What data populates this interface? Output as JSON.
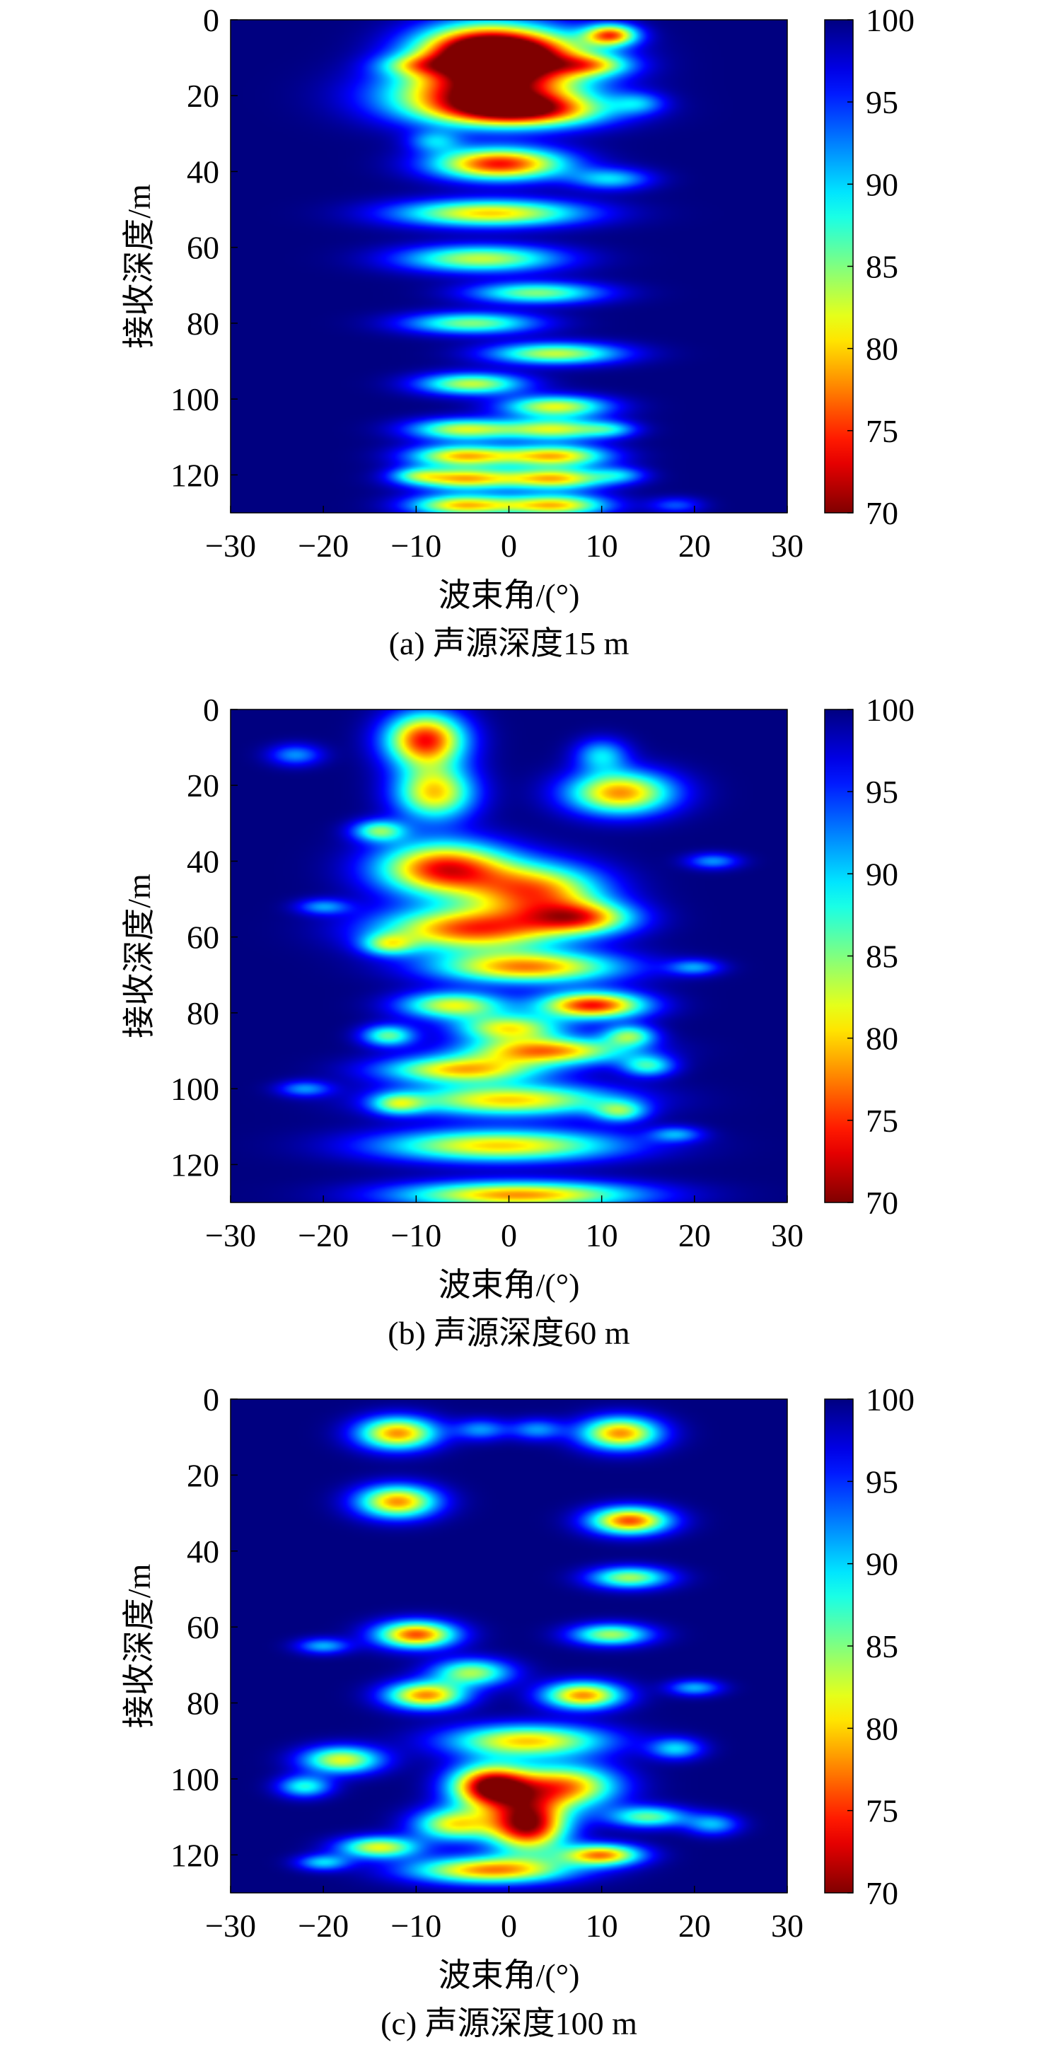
{
  "panels": [
    {
      "caption": "(a) 声源深度15 m",
      "chart_data": {
        "type": "heatmap",
        "title": "",
        "xlabel": "波束角/(°)",
        "ylabel": "接收深度/m",
        "xlim": [
          -30,
          30
        ],
        "ylim": [
          0,
          130
        ],
        "y_inverted": true,
        "xticks": [
          "−30",
          "−20",
          "−10",
          "0",
          "10",
          "20",
          "30"
        ],
        "yticks": [
          "0",
          "20",
          "40",
          "60",
          "80",
          "100",
          "120"
        ],
        "colorbar": {
          "min": 70,
          "max": 100,
          "ticks": [
            "70",
            "75",
            "80",
            "85",
            "90",
            "95",
            "100"
          ],
          "colormap": "jet-reversed"
        },
        "hotspots": [
          {
            "x": -3,
            "y": 8,
            "sx": 5,
            "sy": 5,
            "depth": 24
          },
          {
            "x": 1,
            "y": 10,
            "sx": 6,
            "sy": 5,
            "depth": 24
          },
          {
            "x": -3,
            "y": 20,
            "sx": 7,
            "sy": 5,
            "depth": 27
          },
          {
            "x": 2,
            "y": 24,
            "sx": 6,
            "sy": 3,
            "depth": 20
          },
          {
            "x": -1,
            "y": 38,
            "sx": 5,
            "sy": 3,
            "depth": 26
          },
          {
            "x": -2,
            "y": 51,
            "sx": 7,
            "sy": 2.5,
            "depth": 20
          },
          {
            "x": -3,
            "y": 63,
            "sx": 6,
            "sy": 2.5,
            "depth": 17
          },
          {
            "x": 3,
            "y": 72,
            "sx": 5,
            "sy": 2,
            "depth": 15
          },
          {
            "x": -4,
            "y": 80,
            "sx": 5,
            "sy": 2,
            "depth": 15
          },
          {
            "x": 5,
            "y": 88,
            "sx": 5,
            "sy": 2,
            "depth": 17
          },
          {
            "x": -4,
            "y": 96,
            "sx": 4,
            "sy": 2,
            "depth": 17
          },
          {
            "x": 5,
            "y": 102,
            "sx": 4,
            "sy": 2,
            "depth": 18
          },
          {
            "x": -5,
            "y": 108,
            "sx": 4,
            "sy": 2,
            "depth": 17
          },
          {
            "x": 5,
            "y": 108,
            "sx": 4,
            "sy": 2,
            "depth": 17
          },
          {
            "x": -5,
            "y": 115,
            "sx": 4,
            "sy": 2,
            "depth": 20
          },
          {
            "x": 5,
            "y": 115,
            "sx": 4,
            "sy": 2,
            "depth": 20
          },
          {
            "x": -5,
            "y": 121,
            "sx": 4,
            "sy": 2,
            "depth": 20
          },
          {
            "x": 5,
            "y": 121,
            "sx": 4,
            "sy": 2,
            "depth": 20
          },
          {
            "x": -5,
            "y": 128,
            "sx": 4,
            "sy": 2,
            "depth": 20
          },
          {
            "x": 5,
            "y": 128,
            "sx": 4,
            "sy": 2,
            "depth": 20
          },
          {
            "x": 11,
            "y": 4,
            "sx": 2,
            "sy": 2,
            "depth": 22
          },
          {
            "x": 9,
            "y": 12,
            "sx": 3,
            "sy": 2,
            "depth": 12
          },
          {
            "x": 11,
            "y": 42,
            "sx": 3,
            "sy": 2,
            "depth": 10
          },
          {
            "x": -10,
            "y": 12,
            "sx": 3,
            "sy": 2,
            "depth": 9
          },
          {
            "x": -8,
            "y": 32,
            "sx": 2,
            "sy": 2,
            "depth": 8
          },
          {
            "x": 14,
            "y": 22,
            "sx": 2,
            "sy": 2,
            "depth": 7
          },
          {
            "x": 11,
            "y": 108,
            "sx": 2,
            "sy": 1.5,
            "depth": 7
          },
          {
            "x": -10,
            "y": 120,
            "sx": 2,
            "sy": 1.5,
            "depth": 8
          },
          {
            "x": 12,
            "y": 120,
            "sx": 2,
            "sy": 1.5,
            "depth": 7
          },
          {
            "x": 18,
            "y": 128,
            "sx": 2,
            "sy": 1.5,
            "depth": 6
          }
        ]
      }
    },
    {
      "caption": "(b) 声源深度60 m",
      "chart_data": {
        "type": "heatmap",
        "title": "",
        "xlabel": "波束角/(°)",
        "ylabel": "接收深度/m",
        "xlim": [
          -30,
          30
        ],
        "ylim": [
          0,
          130
        ],
        "y_inverted": true,
        "xticks": [
          "−30",
          "−20",
          "−10",
          "0",
          "10",
          "20",
          "30"
        ],
        "yticks": [
          "0",
          "20",
          "40",
          "60",
          "80",
          "100",
          "120"
        ],
        "colorbar": {
          "min": 70,
          "max": 100,
          "ticks": [
            "70",
            "75",
            "80",
            "85",
            "90",
            "95",
            "100"
          ],
          "colormap": "jet-reversed"
        },
        "hotspots": [
          {
            "x": -9,
            "y": 8,
            "sx": 3,
            "sy": 5,
            "depth": 26
          },
          {
            "x": -8,
            "y": 22,
            "sx": 3,
            "sy": 5,
            "depth": 20
          },
          {
            "x": 12,
            "y": 22,
            "sx": 4,
            "sy": 4,
            "depth": 22
          },
          {
            "x": 10,
            "y": 12,
            "sx": 2,
            "sy": 3,
            "depth": 10
          },
          {
            "x": -7,
            "y": 42,
            "sx": 5,
            "sy": 5,
            "depth": 26
          },
          {
            "x": 3,
            "y": 48,
            "sx": 5,
            "sy": 5,
            "depth": 22
          },
          {
            "x": -4,
            "y": 58,
            "sx": 7,
            "sy": 4,
            "depth": 24
          },
          {
            "x": 8,
            "y": 55,
            "sx": 4,
            "sy": 3,
            "depth": 18
          },
          {
            "x": 2,
            "y": 68,
            "sx": 7,
            "sy": 3,
            "depth": 22
          },
          {
            "x": 9,
            "y": 78,
            "sx": 4,
            "sy": 2.5,
            "depth": 26
          },
          {
            "x": -6,
            "y": 78,
            "sx": 4,
            "sy": 2.5,
            "depth": 18
          },
          {
            "x": 0,
            "y": 84,
            "sx": 4,
            "sy": 2.5,
            "depth": 18
          },
          {
            "x": 4,
            "y": 90,
            "sx": 6,
            "sy": 2.5,
            "depth": 22
          },
          {
            "x": -5,
            "y": 95,
            "sx": 6,
            "sy": 2.5,
            "depth": 20
          },
          {
            "x": 0,
            "y": 103,
            "sx": 8,
            "sy": 3,
            "depth": 20
          },
          {
            "x": -1,
            "y": 115,
            "sx": 9,
            "sy": 3,
            "depth": 20
          },
          {
            "x": 1,
            "y": 128,
            "sx": 9,
            "sy": 2.5,
            "depth": 22
          },
          {
            "x": -14,
            "y": 32,
            "sx": 2,
            "sy": 2,
            "depth": 14
          },
          {
            "x": -13,
            "y": 62,
            "sx": 2,
            "sy": 2,
            "depth": 12
          },
          {
            "x": -13,
            "y": 86,
            "sx": 2,
            "sy": 2,
            "depth": 14
          },
          {
            "x": -12,
            "y": 104,
            "sx": 2,
            "sy": 2,
            "depth": 12
          },
          {
            "x": 13,
            "y": 86,
            "sx": 2,
            "sy": 2,
            "depth": 14
          },
          {
            "x": 15,
            "y": 94,
            "sx": 2,
            "sy": 2,
            "depth": 12
          },
          {
            "x": 12,
            "y": 106,
            "sx": 2,
            "sy": 2,
            "depth": 12
          },
          {
            "x": 18,
            "y": 112,
            "sx": 2,
            "sy": 1.5,
            "depth": 8
          },
          {
            "x": -20,
            "y": 52,
            "sx": 2,
            "sy": 1.5,
            "depth": 8
          },
          {
            "x": 20,
            "y": 68,
            "sx": 2,
            "sy": 1.5,
            "depth": 8
          },
          {
            "x": -22,
            "y": 100,
            "sx": 2,
            "sy": 1.5,
            "depth": 8
          },
          {
            "x": -23,
            "y": 12,
            "sx": 2,
            "sy": 2,
            "depth": 8
          },
          {
            "x": 22,
            "y": 40,
            "sx": 2,
            "sy": 1.5,
            "depth": 8
          }
        ]
      }
    },
    {
      "caption": "(c) 声源深度100 m",
      "chart_data": {
        "type": "heatmap",
        "title": "",
        "xlabel": "波束角/(°)",
        "ylabel": "接收深度/m",
        "xlim": [
          -30,
          30
        ],
        "ylim": [
          0,
          130
        ],
        "y_inverted": true,
        "xticks": [
          "−30",
          "−20",
          "−10",
          "0",
          "10",
          "20",
          "30"
        ],
        "yticks": [
          "0",
          "20",
          "40",
          "60",
          "80",
          "100",
          "120"
        ],
        "colorbar": {
          "min": 70,
          "max": 100,
          "ticks": [
            "70",
            "75",
            "80",
            "85",
            "90",
            "95",
            "100"
          ],
          "colormap": "jet-reversed"
        },
        "hotspots": [
          {
            "x": -12,
            "y": 9,
            "sx": 3,
            "sy": 3,
            "depth": 22
          },
          {
            "x": 12,
            "y": 9,
            "sx": 3,
            "sy": 3,
            "depth": 22
          },
          {
            "x": -12,
            "y": 27,
            "sx": 3,
            "sy": 3,
            "depth": 22
          },
          {
            "x": 13,
            "y": 32,
            "sx": 3,
            "sy": 2.5,
            "depth": 24
          },
          {
            "x": 13,
            "y": 47,
            "sx": 3,
            "sy": 2,
            "depth": 16
          },
          {
            "x": -10,
            "y": 62,
            "sx": 3,
            "sy": 2.5,
            "depth": 24
          },
          {
            "x": 11,
            "y": 62,
            "sx": 3,
            "sy": 2,
            "depth": 16
          },
          {
            "x": -9,
            "y": 78,
            "sx": 3,
            "sy": 2.5,
            "depth": 22
          },
          {
            "x": 8,
            "y": 78,
            "sx": 3,
            "sy": 2.5,
            "depth": 22
          },
          {
            "x": -4,
            "y": 72,
            "sx": 3,
            "sy": 2.5,
            "depth": 16
          },
          {
            "x": -2,
            "y": 102,
            "sx": 3,
            "sy": 4,
            "depth": 30
          },
          {
            "x": 2,
            "y": 112,
            "sx": 3,
            "sy": 5,
            "depth": 30
          },
          {
            "x": 6,
            "y": 102,
            "sx": 4,
            "sy": 4,
            "depth": 22
          },
          {
            "x": -6,
            "y": 112,
            "sx": 3,
            "sy": 3,
            "depth": 18
          },
          {
            "x": 2,
            "y": 90,
            "sx": 6,
            "sy": 3,
            "depth": 20
          },
          {
            "x": -2,
            "y": 124,
            "sx": 6,
            "sy": 2.5,
            "depth": 22
          },
          {
            "x": 10,
            "y": 120,
            "sx": 3,
            "sy": 2,
            "depth": 22
          },
          {
            "x": -18,
            "y": 95,
            "sx": 3,
            "sy": 2.5,
            "depth": 18
          },
          {
            "x": -14,
            "y": 118,
            "sx": 3,
            "sy": 2,
            "depth": 18
          },
          {
            "x": 15,
            "y": 110,
            "sx": 3,
            "sy": 2,
            "depth": 14
          },
          {
            "x": -22,
            "y": 102,
            "sx": 2,
            "sy": 2,
            "depth": 12
          },
          {
            "x": -20,
            "y": 122,
            "sx": 2,
            "sy": 1.5,
            "depth": 10
          },
          {
            "x": 18,
            "y": 92,
            "sx": 2,
            "sy": 2,
            "depth": 10
          },
          {
            "x": -20,
            "y": 65,
            "sx": 2,
            "sy": 1.5,
            "depth": 9
          },
          {
            "x": 20,
            "y": 76,
            "sx": 2,
            "sy": 1.5,
            "depth": 9
          },
          {
            "x": -3,
            "y": 8,
            "sx": 2,
            "sy": 2,
            "depth": 8
          },
          {
            "x": 3,
            "y": 8,
            "sx": 2,
            "sy": 2,
            "depth": 8
          },
          {
            "x": 22,
            "y": 112,
            "sx": 2,
            "sy": 2,
            "depth": 9
          }
        ]
      }
    }
  ]
}
